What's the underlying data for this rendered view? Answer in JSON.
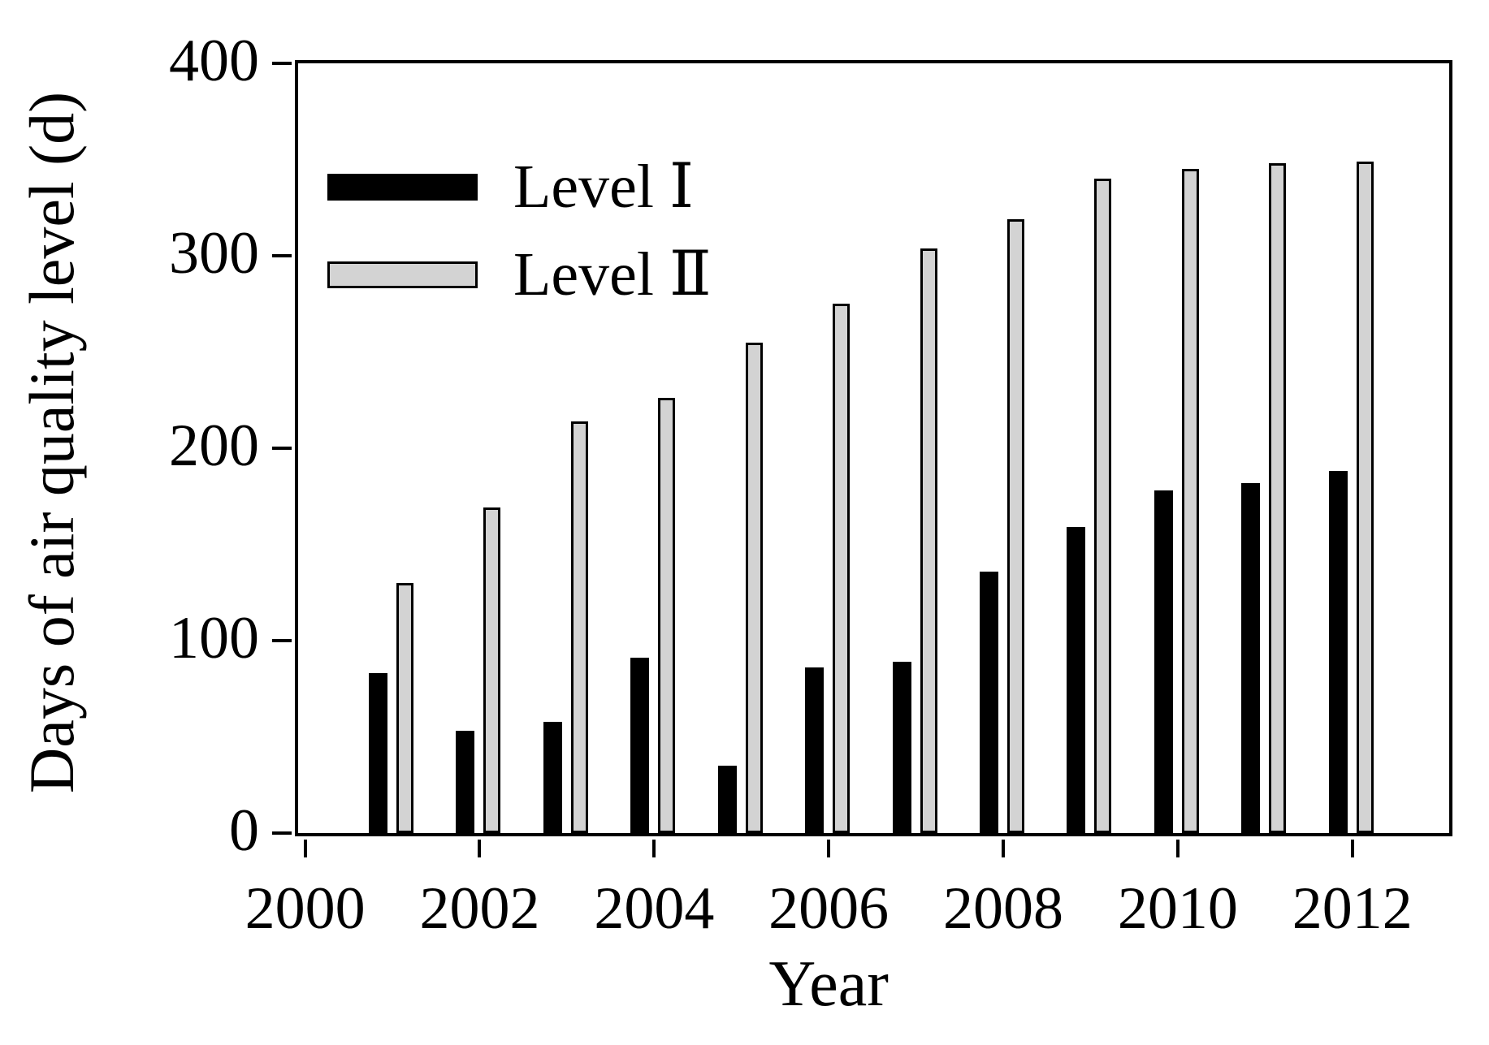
{
  "chart_data": {
    "type": "bar",
    "title": "",
    "xlabel": "Year",
    "ylabel": "Days of air quality level (d)",
    "categories": [
      2001,
      2002,
      2003,
      2004,
      2005,
      2006,
      2007,
      2008,
      2009,
      2010,
      2011,
      2012
    ],
    "series": [
      {
        "name": "Level Ⅰ",
        "color": "#000000",
        "values": [
          83,
          53,
          58,
          91,
          35,
          86,
          89,
          136,
          159,
          178,
          182,
          188
        ]
      },
      {
        "name": "Level Ⅱ",
        "color": "#d3d3d3",
        "values": [
          130,
          169,
          214,
          226,
          255,
          275,
          304,
          319,
          340,
          345,
          348,
          349
        ]
      }
    ],
    "ylim": [
      0,
      400
    ],
    "yticks": [
      0,
      100,
      200,
      300,
      400
    ],
    "xticks": [
      2000,
      2002,
      2004,
      2006,
      2008,
      2010,
      2012
    ],
    "xlim": [
      1999.92,
      2013.11
    ],
    "grid": false,
    "legend_position": "upper-left",
    "bar_outline_color": "#000000",
    "axis_color": "#000000"
  }
}
